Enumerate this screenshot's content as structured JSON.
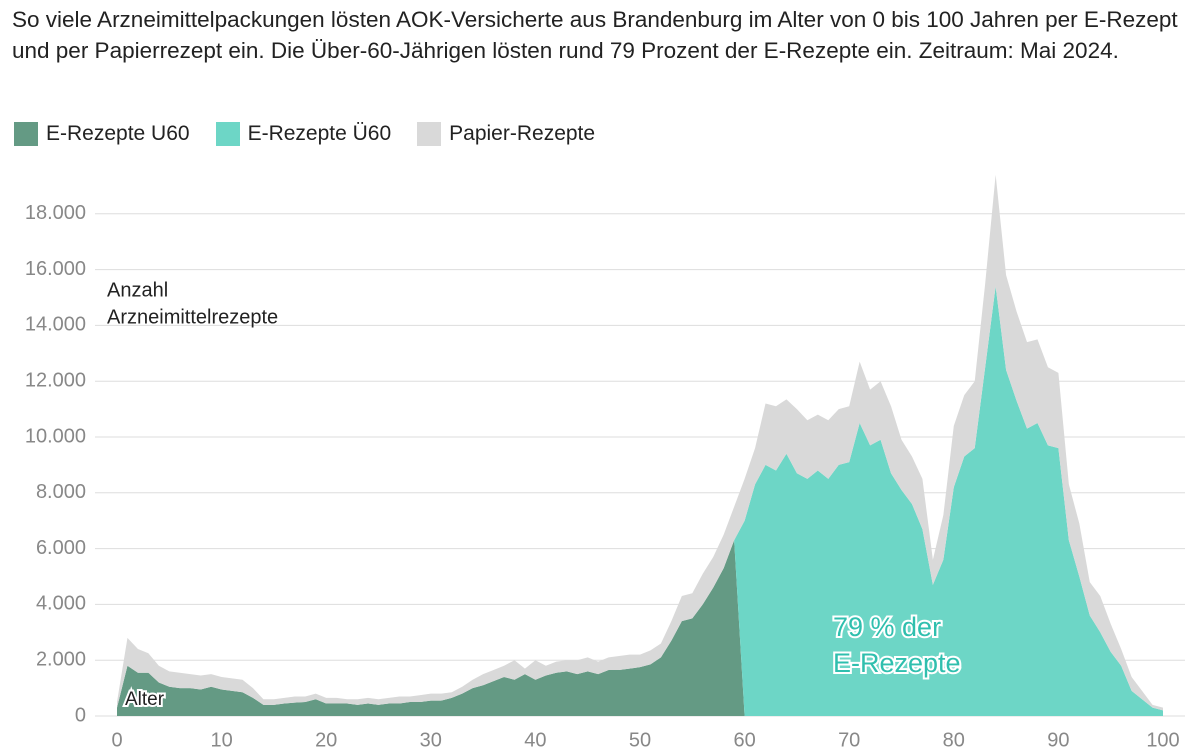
{
  "chart_data": {
    "type": "stacked_area",
    "title": "So viele Arzneimittelpackungen lösten AOK-Versicherte aus Brandenburg im Alter von 0 bis 100 Jahren per E-Rezept und per Papierrezept ein. Die Über-60-Jährigen lösten rund 79 Prozent der E-Rezepte ein. Zeitraum: Mai 2024.",
    "y_label": [
      "Anzahl",
      "Arzneimittelrezepte"
    ],
    "x_label": "Alter",
    "annotation": [
      "79 % der",
      "E-Rezepte"
    ],
    "x": [
      0,
      1,
      2,
      3,
      4,
      5,
      6,
      7,
      8,
      9,
      10,
      11,
      12,
      13,
      14,
      15,
      16,
      17,
      18,
      19,
      20,
      21,
      22,
      23,
      24,
      25,
      26,
      27,
      28,
      29,
      30,
      31,
      32,
      33,
      34,
      35,
      36,
      37,
      38,
      39,
      40,
      41,
      42,
      43,
      44,
      45,
      46,
      47,
      48,
      49,
      50,
      51,
      52,
      53,
      54,
      55,
      56,
      57,
      58,
      59,
      60,
      61,
      62,
      63,
      64,
      65,
      66,
      67,
      68,
      69,
      70,
      71,
      72,
      73,
      74,
      75,
      76,
      77,
      78,
      79,
      80,
      81,
      82,
      83,
      84,
      85,
      86,
      87,
      88,
      89,
      90,
      91,
      92,
      93,
      94,
      95,
      96,
      97,
      98,
      99,
      100
    ],
    "series": [
      {
        "name": "E-Rezepte U60",
        "color": "#649a84",
        "values": [
          300,
          1800,
          1550,
          1550,
          1200,
          1050,
          1000,
          1000,
          950,
          1050,
          950,
          900,
          850,
          650,
          400,
          400,
          450,
          480,
          500,
          600,
          450,
          450,
          450,
          400,
          450,
          400,
          450,
          450,
          500,
          500,
          550,
          550,
          650,
          800,
          1000,
          1100,
          1250,
          1400,
          1300,
          1500,
          1300,
          1450,
          1550,
          1600,
          1500,
          1600,
          1500,
          1650,
          1650,
          1700,
          1750,
          1850,
          2100,
          2700,
          3400,
          3500,
          4000,
          4600,
          5300,
          6300,
          0,
          0,
          0,
          0,
          0,
          0,
          0,
          0,
          0,
          0,
          0,
          0,
          0,
          0,
          0,
          0,
          0,
          0,
          0,
          0,
          0,
          0,
          0,
          0,
          0,
          0,
          0,
          0,
          0,
          0,
          0,
          0,
          0,
          0,
          0,
          0,
          0,
          0,
          0,
          0,
          0
        ]
      },
      {
        "name": "E-Rezepte Ü60",
        "color": "#6dd6c6",
        "values": [
          0,
          0,
          0,
          0,
          0,
          0,
          0,
          0,
          0,
          0,
          0,
          0,
          0,
          0,
          0,
          0,
          0,
          0,
          0,
          0,
          0,
          0,
          0,
          0,
          0,
          0,
          0,
          0,
          0,
          0,
          0,
          0,
          0,
          0,
          0,
          0,
          0,
          0,
          0,
          0,
          0,
          0,
          0,
          0,
          0,
          0,
          0,
          0,
          0,
          0,
          0,
          0,
          0,
          0,
          0,
          0,
          0,
          0,
          0,
          0,
          7000,
          8300,
          9000,
          8800,
          9400,
          8700,
          8500,
          8800,
          8500,
          9000,
          9100,
          10500,
          9700,
          9900,
          8700,
          8100,
          7600,
          6700,
          4700,
          5600,
          8200,
          9300,
          9600,
          12500,
          15400,
          12400,
          11300,
          10300,
          10500,
          9700,
          9600,
          6300,
          5000,
          3600,
          3000,
          2300,
          1800,
          900,
          600,
          300,
          200
        ]
      },
      {
        "name": "Papier-Rezepte",
        "color": "#d9d9d9",
        "values": [
          200,
          1000,
          850,
          700,
          600,
          550,
          550,
          500,
          500,
          450,
          450,
          450,
          450,
          350,
          200,
          200,
          200,
          220,
          200,
          200,
          200,
          200,
          150,
          200,
          200,
          200,
          200,
          250,
          200,
          250,
          250,
          250,
          200,
          250,
          300,
          400,
          400,
          400,
          700,
          200,
          700,
          350,
          400,
          400,
          500,
          500,
          450,
          450,
          500,
          500,
          450,
          500,
          500,
          700,
          900,
          900,
          1100,
          1100,
          1200,
          1200,
          1500,
          1300,
          2200,
          2300,
          1950,
          2300,
          2100,
          2000,
          2100,
          2000,
          2000,
          2200,
          2000,
          2100,
          2400,
          1800,
          1700,
          1800,
          900,
          1600,
          2200,
          2200,
          2400,
          3000,
          4000,
          3400,
          3200,
          3100,
          3000,
          2800,
          2700,
          2000,
          1900,
          1200,
          1300,
          1000,
          600,
          500,
          300,
          100,
          100
        ]
      }
    ],
    "xlim": [
      0,
      100
    ],
    "xticks": [
      0,
      10,
      20,
      30,
      40,
      50,
      60,
      70,
      80,
      90,
      100
    ],
    "ylim": [
      0,
      19500
    ],
    "yticks": [
      0,
      {
        "value": 2000,
        "label": "2.000"
      },
      {
        "value": 4000,
        "label": "4.000"
      },
      {
        "value": 6000,
        "label": "6.000"
      },
      {
        "value": 8000,
        "label": "8.000"
      },
      {
        "value": 10000,
        "label": "10.000"
      },
      {
        "value": 12000,
        "label": "12.000"
      },
      {
        "value": 14000,
        "label": "14.000"
      },
      {
        "value": 16000,
        "label": "16.000"
      },
      {
        "value": 18000,
        "label": "18.000"
      }
    ],
    "grid": true
  }
}
